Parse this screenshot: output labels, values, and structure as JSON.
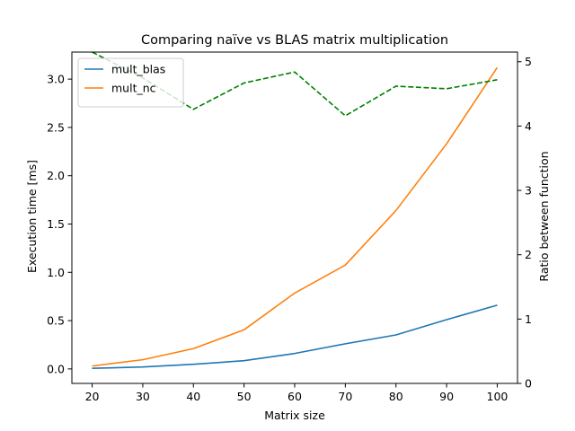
{
  "chart_data": {
    "type": "line",
    "title": "Comparing naïve vs BLAS matrix multiplication",
    "xlabel": "Matrix size",
    "ylabel": "Execution time [ms]",
    "y2label": "Ratio between function",
    "x": [
      20,
      30,
      40,
      50,
      60,
      70,
      80,
      90,
      100
    ],
    "xlim": [
      16,
      104
    ],
    "ylim": [
      -0.15,
      3.28
    ],
    "y2lim": [
      0,
      5.15
    ],
    "xticks": [
      "20",
      "30",
      "40",
      "50",
      "60",
      "70",
      "80",
      "90",
      "100"
    ],
    "yticks": [
      "0.0",
      "0.5",
      "1.0",
      "1.5",
      "2.0",
      "2.5",
      "3.0"
    ],
    "y2ticks": [
      "0",
      "1",
      "2",
      "3",
      "4",
      "5"
    ],
    "grid": false,
    "legend_position": "top-left",
    "series": [
      {
        "name": "mult_blas",
        "axis": "left",
        "color": "#1f77b4",
        "style": "solid",
        "values": [
          0.006,
          0.02,
          0.048,
          0.085,
          0.16,
          0.26,
          0.352,
          0.51,
          0.66
        ]
      },
      {
        "name": "mult_nc",
        "axis": "left",
        "color": "#ff7f0e",
        "style": "solid",
        "values": [
          0.03,
          0.095,
          0.21,
          0.405,
          0.785,
          1.075,
          1.64,
          2.33,
          3.12
        ]
      },
      {
        "name": "",
        "axis": "right",
        "color": "#008000",
        "style": "dashed",
        "values": [
          5.15,
          4.75,
          4.26,
          4.67,
          4.84,
          4.16,
          4.62,
          4.58,
          4.72
        ]
      }
    ]
  }
}
